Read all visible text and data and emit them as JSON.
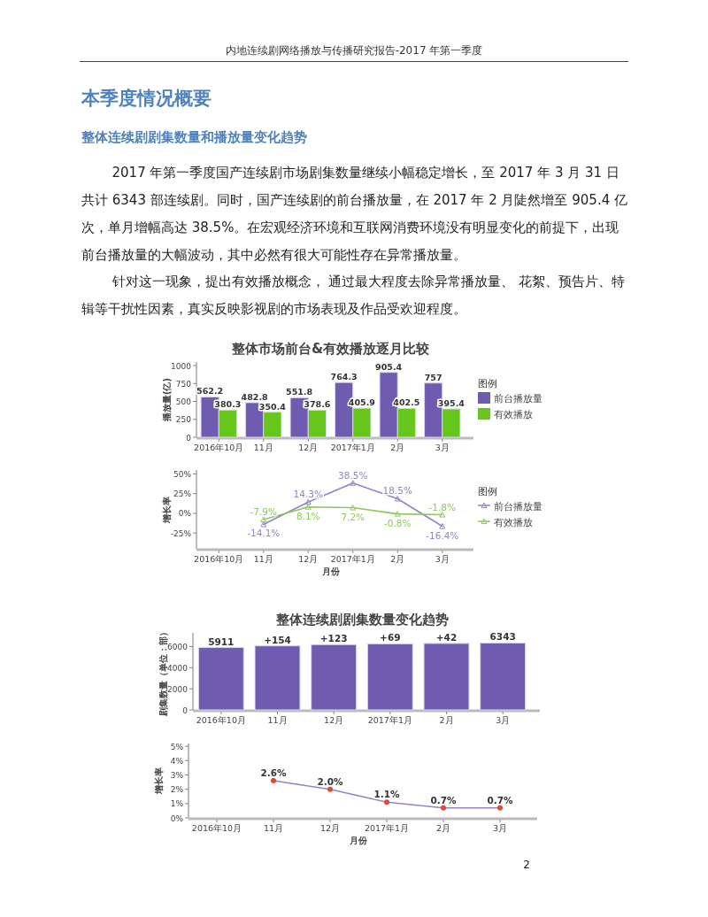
{
  "chart_data": [
    {
      "type": "bar",
      "title": "整体市场前台&有效播放逐月比较",
      "ylabel": "播放量(亿)",
      "legend_title": "图例",
      "legend": "right",
      "data_labels": true,
      "annotations": [
        "内地连续剧网络播放与传播研究报告-2017 年第一季度",
        "本季度情况概要",
        "整体连续剧剧集数量和播放量变化趋势",
        "2017 年第一季度国产连续剧市场剧集数量继续小幅稳定增长，至 2017 年 3 月 31 日共计 6343 部连续剧。同时，国产连续剧的前台播放量，在 2017 年 2 月陡然增至 905.4 亿次，单月增幅高达 38.5%。在宏观经济环境和互联网消费环境没有明显变化的前提下，出现前台播放量的大幅波动，其中必然有很大可能性存在异常播放量。",
        "针对这一现象，提出有效播放概念， 通过最大程度去除异常播放量、 花絮、预告片、特辑等干扰性因素，真实反映影视剧的市场表现及作品受欢迎程度。",
        "2"
      ],
      "categories": [
        "2016年10月",
        "11月",
        "12月",
        "2017年1月",
        "2月",
        "3月"
      ],
      "series": [
        {
          "name": "前台播放量",
          "color": "#6f5bb0",
          "values": [
            562.2,
            482.8,
            551.8,
            764.3,
            905.4,
            757
          ]
        },
        {
          "name": "有效播放",
          "color": "#66c61c",
          "values": [
            380.3,
            350.4,
            378.6,
            405.9,
            402.5,
            395.4
          ]
        }
      ],
      "ylim": [
        0,
        1050
      ],
      "yticks": [
        0,
        250,
        500,
        750,
        1000
      ]
    },
    {
      "type": "line",
      "xlabel": "月份",
      "ylabel": "增长率",
      "legend_title": "图例",
      "legend": "right",
      "marker": "triangle",
      "categories": [
        "2016年10月",
        "11月",
        "12月",
        "2017年1月",
        "2月",
        "3月"
      ],
      "series": [
        {
          "name": "前台播放量",
          "color": "#8f86c4",
          "values": [
            null,
            -14.1,
            14.3,
            38.5,
            18.5,
            -16.4
          ],
          "value_labels": [
            null,
            "-14.1%",
            "14.3%",
            "38.5%",
            "18.5%",
            "-16.4%"
          ]
        },
        {
          "name": "有效播放",
          "color": "#8cc957",
          "values": [
            null,
            -7.9,
            8.1,
            7.2,
            -0.8,
            -1.8
          ],
          "value_labels": [
            null,
            "-7.9%",
            "8.1%",
            "7.2%",
            "-0.8%",
            "-1.8%"
          ]
        }
      ],
      "ylim": [
        -45,
        55
      ],
      "yticks": [
        {
          "value": -25,
          "label": "-25%"
        },
        {
          "value": 0,
          "label": "0%"
        },
        {
          "value": 25,
          "label": "25%"
        },
        {
          "value": 50,
          "label": "50%"
        }
      ]
    },
    {
      "type": "bar",
      "title": "整体连续剧剧集数量变化趋势",
      "ylabel": "剧集数量（单位：部）",
      "categories": [
        "2016年10月",
        "11月",
        "12月",
        "2017年1月",
        "2月",
        "3月"
      ],
      "values": [
        5911,
        6070,
        6190,
        6260,
        6300,
        6343
      ],
      "value_labels": [
        "5911",
        null,
        null,
        null,
        null,
        "6343"
      ],
      "color": "#6f5bb0",
      "annotations": [
        {
          "text": "+154",
          "x": "11月",
          "y": 6070
        },
        {
          "text": "+123",
          "x": "12月",
          "y": 6190
        },
        {
          "text": "+69",
          "x": "2017年1月",
          "y": 6260
        },
        {
          "text": "+42",
          "x": "2月",
          "y": 6300
        }
      ],
      "ylim": [
        0,
        7300
      ],
      "yticks": [
        0,
        2000,
        4000,
        6000
      ]
    },
    {
      "type": "line",
      "xlabel": "月份",
      "ylabel": "增长率",
      "marker": "circle",
      "categories": [
        "2016年10月",
        "11月",
        "12月",
        "2017年1月",
        "2月",
        "3月"
      ],
      "series": [
        {
          "color": "#8f86c4",
          "colors": [
            null,
            "#e0463c",
            "#e0463c",
            "#e0463c",
            "#e0463c",
            "#e0463c"
          ],
          "values": [
            null,
            2.6,
            2.0,
            1.1,
            0.7,
            0.7
          ],
          "value_labels": [
            null,
            "2.6%",
            "2.0%",
            "1.1%",
            "0.7%",
            "0.7%"
          ]
        }
      ],
      "ylim": [
        0,
        5.2
      ],
      "yticks": [
        {
          "value": 0,
          "label": "0%"
        },
        {
          "value": 1,
          "label": "1%"
        },
        {
          "value": 2,
          "label": "2%"
        },
        {
          "value": 3,
          "label": "3%"
        },
        {
          "value": 4,
          "label": "4%"
        },
        {
          "value": 5,
          "label": "5%"
        }
      ]
    }
  ]
}
